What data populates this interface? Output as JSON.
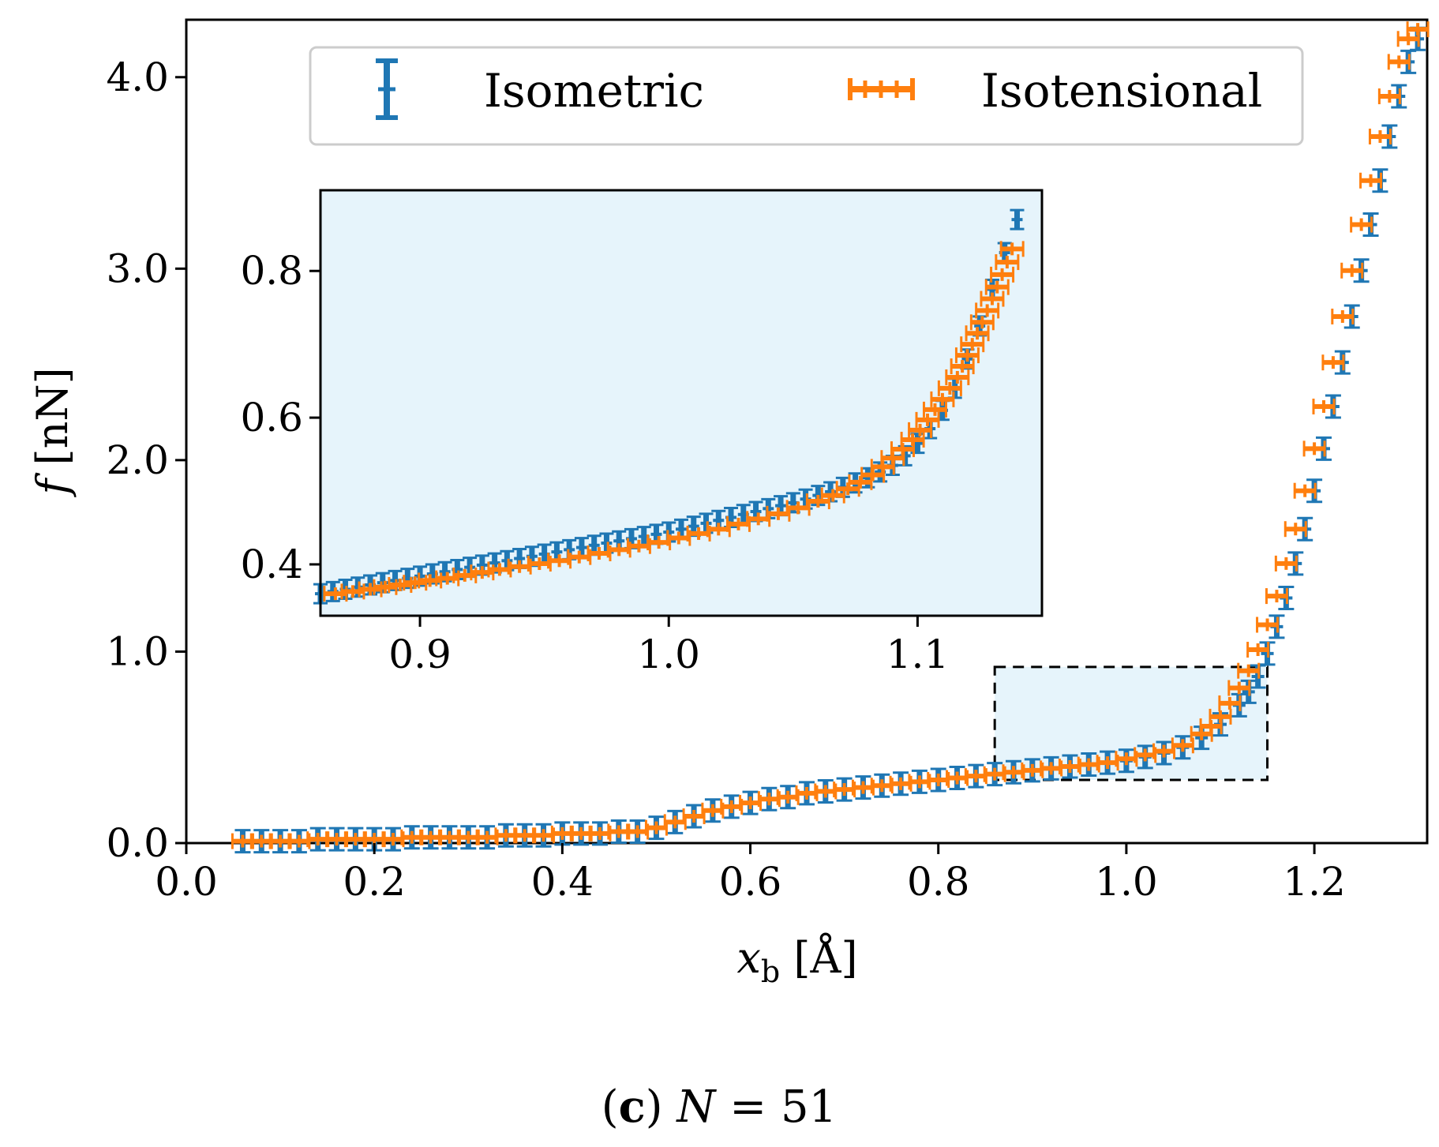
{
  "colors": {
    "isometric": "#1f77b4",
    "isotensional": "#ff7f0e",
    "inset_bg": "#e6f4fb",
    "zoom_box_fill": "#e6f4fb"
  },
  "chart_data": [
    {
      "id": "main",
      "type": "scatter",
      "title": "",
      "xlabel": "x_b [Å]",
      "xlabel_main": "x",
      "xlabel_sub": "b",
      "xlabel_unit": " [Å]",
      "ylabel": "f [nN]",
      "ylabel_symbol": "f",
      "ylabel_unit": " [nN]",
      "xlim": [
        0.0,
        1.32
      ],
      "ylim": [
        0.0,
        4.3
      ],
      "xticks": [
        0.0,
        0.2,
        0.4,
        0.6,
        0.8,
        1.0,
        1.2
      ],
      "xtick_labels": [
        "0.0",
        "0.2",
        "0.4",
        "0.6",
        "0.8",
        "1.0",
        "1.2"
      ],
      "yticks": [
        0.0,
        1.0,
        2.0,
        3.0,
        4.0
      ],
      "ytick_labels": [
        "0.0",
        "1.0",
        "2.0",
        "3.0",
        "4.0"
      ],
      "legend": {
        "position": "top-center",
        "entries": [
          "Isometric",
          "Isotensional"
        ]
      },
      "zoom_region": {
        "x": [
          0.86,
          1.15
        ],
        "y": [
          0.33,
          0.92
        ]
      },
      "series": [
        {
          "name": "Isometric",
          "marker": "vertical errorbar",
          "x": [
            0.06,
            0.08,
            0.1,
            0.12,
            0.14,
            0.16,
            0.18,
            0.2,
            0.22,
            0.24,
            0.26,
            0.28,
            0.3,
            0.32,
            0.34,
            0.36,
            0.38,
            0.4,
            0.42,
            0.44,
            0.46,
            0.48,
            0.5,
            0.52,
            0.54,
            0.56,
            0.58,
            0.6,
            0.62,
            0.64,
            0.66,
            0.68,
            0.7,
            0.72,
            0.74,
            0.76,
            0.78,
            0.8,
            0.82,
            0.84,
            0.86,
            0.88,
            0.9,
            0.92,
            0.94,
            0.96,
            0.98,
            1.0,
            1.02,
            1.04,
            1.06,
            1.08,
            1.1,
            1.12,
            1.13,
            1.14,
            1.15,
            1.16,
            1.17,
            1.18,
            1.19,
            1.2,
            1.21,
            1.22,
            1.23,
            1.24,
            1.25,
            1.26,
            1.27,
            1.28,
            1.29,
            1.3,
            1.31
          ],
          "y": [
            0.01,
            0.01,
            0.01,
            0.01,
            0.02,
            0.02,
            0.02,
            0.02,
            0.02,
            0.03,
            0.03,
            0.03,
            0.03,
            0.03,
            0.04,
            0.04,
            0.04,
            0.05,
            0.05,
            0.05,
            0.06,
            0.06,
            0.08,
            0.11,
            0.14,
            0.17,
            0.19,
            0.21,
            0.23,
            0.24,
            0.26,
            0.27,
            0.28,
            0.29,
            0.3,
            0.31,
            0.32,
            0.33,
            0.34,
            0.35,
            0.36,
            0.37,
            0.38,
            0.39,
            0.4,
            0.41,
            0.42,
            0.43,
            0.45,
            0.47,
            0.5,
            0.55,
            0.62,
            0.72,
            0.79,
            0.87,
            0.99,
            1.13,
            1.28,
            1.46,
            1.64,
            1.84,
            2.06,
            2.28,
            2.51,
            2.75,
            2.99,
            3.23,
            3.46,
            3.69,
            3.9,
            4.08,
            4.2
          ]
        },
        {
          "name": "Isotensional",
          "marker": "horizontal errorbar",
          "x": [
            0.06,
            0.08,
            0.1,
            0.12,
            0.14,
            0.16,
            0.18,
            0.2,
            0.22,
            0.24,
            0.26,
            0.28,
            0.3,
            0.32,
            0.34,
            0.36,
            0.38,
            0.4,
            0.42,
            0.44,
            0.46,
            0.48,
            0.5,
            0.52,
            0.54,
            0.56,
            0.58,
            0.6,
            0.62,
            0.64,
            0.66,
            0.68,
            0.7,
            0.72,
            0.74,
            0.76,
            0.78,
            0.8,
            0.82,
            0.84,
            0.86,
            0.88,
            0.9,
            0.92,
            0.94,
            0.96,
            0.98,
            1.0,
            1.02,
            1.04,
            1.06,
            1.08,
            1.09,
            1.1,
            1.11,
            1.12,
            1.13,
            1.14,
            1.15,
            1.16,
            1.17,
            1.18,
            1.19,
            1.2,
            1.21,
            1.22,
            1.23,
            1.24,
            1.25,
            1.26,
            1.27,
            1.28,
            1.29,
            1.3,
            1.31
          ],
          "y": [
            0.01,
            0.01,
            0.01,
            0.01,
            0.02,
            0.02,
            0.02,
            0.02,
            0.02,
            0.03,
            0.03,
            0.03,
            0.03,
            0.03,
            0.04,
            0.04,
            0.04,
            0.05,
            0.05,
            0.05,
            0.06,
            0.06,
            0.08,
            0.11,
            0.14,
            0.17,
            0.19,
            0.21,
            0.23,
            0.24,
            0.26,
            0.27,
            0.28,
            0.29,
            0.3,
            0.31,
            0.32,
            0.33,
            0.34,
            0.35,
            0.36,
            0.37,
            0.38,
            0.39,
            0.4,
            0.41,
            0.42,
            0.44,
            0.46,
            0.48,
            0.51,
            0.57,
            0.61,
            0.66,
            0.73,
            0.81,
            0.9,
            1.01,
            1.14,
            1.29,
            1.46,
            1.64,
            1.84,
            2.06,
            2.28,
            2.51,
            2.75,
            2.99,
            3.23,
            3.46,
            3.69,
            3.9,
            4.08,
            4.2,
            4.25
          ]
        }
      ]
    },
    {
      "id": "inset",
      "type": "scatter",
      "title": "",
      "xlim": [
        0.86,
        1.15
      ],
      "ylim": [
        0.33,
        0.91
      ],
      "xticks": [
        0.9,
        1.0,
        1.1
      ],
      "xtick_labels": [
        "0.9",
        "1.0",
        "1.1"
      ],
      "yticks": [
        0.4,
        0.6,
        0.8
      ],
      "ytick_labels": [
        "0.4",
        "0.6",
        "0.8"
      ],
      "background": "light-blue",
      "series": [
        {
          "name": "Isometric",
          "marker": "vertical errorbar",
          "x": [
            0.86,
            0.865,
            0.87,
            0.875,
            0.88,
            0.885,
            0.89,
            0.895,
            0.9,
            0.905,
            0.91,
            0.915,
            0.92,
            0.925,
            0.93,
            0.935,
            0.94,
            0.945,
            0.95,
            0.955,
            0.96,
            0.965,
            0.97,
            0.975,
            0.98,
            0.985,
            0.99,
            0.995,
            1.0,
            1.005,
            1.01,
            1.015,
            1.02,
            1.025,
            1.03,
            1.035,
            1.04,
            1.045,
            1.05,
            1.055,
            1.06,
            1.065,
            1.07,
            1.075,
            1.08,
            1.085,
            1.09,
            1.095,
            1.1,
            1.105,
            1.11,
            1.115,
            1.12,
            1.125,
            1.13,
            1.135,
            1.14
          ],
          "y": [
            0.36,
            0.363,
            0.366,
            0.369,
            0.372,
            0.375,
            0.378,
            0.381,
            0.384,
            0.387,
            0.39,
            0.393,
            0.396,
            0.399,
            0.402,
            0.405,
            0.408,
            0.411,
            0.414,
            0.417,
            0.42,
            0.423,
            0.426,
            0.429,
            0.432,
            0.435,
            0.438,
            0.441,
            0.444,
            0.448,
            0.452,
            0.456,
            0.46,
            0.464,
            0.468,
            0.472,
            0.476,
            0.48,
            0.484,
            0.489,
            0.494,
            0.499,
            0.505,
            0.511,
            0.518,
            0.526,
            0.535,
            0.548,
            0.565,
            0.585,
            0.61,
            0.64,
            0.68,
            0.725,
            0.775,
            0.825,
            0.87
          ]
        },
        {
          "name": "Isotensional",
          "marker": "horizontal errorbar",
          "x": [
            0.866,
            0.873,
            0.88,
            0.886,
            0.892,
            0.898,
            0.904,
            0.911,
            0.918,
            0.925,
            0.932,
            0.94,
            0.948,
            0.956,
            0.964,
            0.972,
            0.98,
            0.988,
            0.996,
            1.004,
            1.012,
            1.02,
            1.028,
            1.036,
            1.044,
            1.052,
            1.06,
            1.066,
            1.072,
            1.077,
            1.082,
            1.086,
            1.09,
            1.094,
            1.098,
            1.101,
            1.104,
            1.107,
            1.11,
            1.113,
            1.116,
            1.118,
            1.12,
            1.122,
            1.124,
            1.126,
            1.128,
            1.13,
            1.132,
            1.134,
            1.136,
            1.138
          ],
          "y": [
            0.36,
            0.363,
            0.366,
            0.369,
            0.372,
            0.375,
            0.378,
            0.381,
            0.385,
            0.389,
            0.393,
            0.397,
            0.401,
            0.405,
            0.41,
            0.415,
            0.42,
            0.425,
            0.43,
            0.436,
            0.442,
            0.448,
            0.455,
            0.462,
            0.469,
            0.477,
            0.486,
            0.494,
            0.503,
            0.512,
            0.522,
            0.533,
            0.545,
            0.557,
            0.57,
            0.583,
            0.597,
            0.611,
            0.625,
            0.64,
            0.655,
            0.67,
            0.685,
            0.7,
            0.715,
            0.73,
            0.746,
            0.762,
            0.778,
            0.795,
            0.812,
            0.83
          ]
        }
      ]
    }
  ],
  "caption": {
    "label": "c",
    "open": "(",
    "close": ")",
    "variable": "N",
    "equals": " = 51"
  }
}
